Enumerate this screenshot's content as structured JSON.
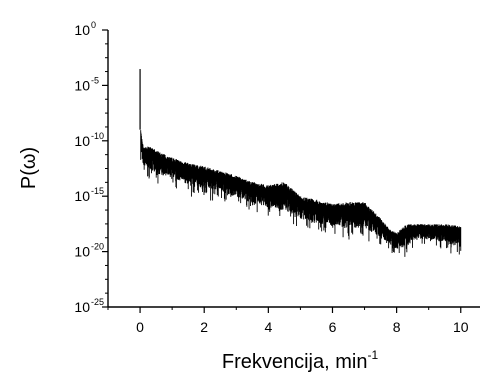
{
  "chart_data": {
    "type": "line",
    "xlabel": "Frekvencija, min",
    "xlabel_superscript": "-1",
    "ylabel": "P(ω)",
    "y_scale": "log",
    "xlim": [
      -1,
      10.6
    ],
    "ylim": [
      1e-25,
      1
    ],
    "x_ticks": [
      {
        "value": 0,
        "label": "0"
      },
      {
        "value": 2,
        "label": "2"
      },
      {
        "value": 4,
        "label": "4"
      },
      {
        "value": 6,
        "label": "6"
      },
      {
        "value": 8,
        "label": "8"
      },
      {
        "value": 10,
        "label": "10"
      }
    ],
    "y_ticks": [
      {
        "value": 1,
        "base": "10",
        "exponent": "0"
      },
      {
        "value": 1e-05,
        "base": "10",
        "exponent": "-5"
      },
      {
        "value": 1e-10,
        "base": "10",
        "exponent": "-10"
      },
      {
        "value": 1e-15,
        "base": "10",
        "exponent": "-15"
      },
      {
        "value": 1e-20,
        "base": "10",
        "exponent": "-20"
      },
      {
        "value": 1e-25,
        "base": "10",
        "exponent": "-25"
      }
    ],
    "grid": false,
    "legend": "none",
    "line_color": "#000000",
    "series": [
      {
        "peak": {
          "x": 0.0,
          "y": 0.0003
        },
        "envelope_upper": {
          "x": [
            0.02,
            0.1,
            0.3,
            0.6,
            1.0,
            1.5,
            2.0,
            2.5,
            3.0,
            3.5,
            4.0,
            4.5,
            5.0,
            5.5,
            6.0,
            6.5,
            7.0,
            7.5,
            7.8,
            8.0,
            8.3,
            8.6,
            9.0,
            9.5,
            10.0
          ],
          "y": [
            1e-09,
            3e-11,
            3e-11,
            1e-11,
            3e-12,
            1e-12,
            5e-13,
            2e-13,
            7e-14,
            2e-14,
            1e-14,
            2e-14,
            1e-15,
            5e-16,
            2e-16,
            3e-16,
            3e-16,
            1e-17,
            1e-18,
            5e-19,
            3e-18,
            3e-18,
            3e-18,
            3e-18,
            2e-18
          ]
        },
        "envelope_lower": {
          "x": [
            0.02,
            0.1,
            0.3,
            0.6,
            1.0,
            1.5,
            2.0,
            2.5,
            3.0,
            3.5,
            4.0,
            4.5,
            5.0,
            5.5,
            6.0,
            6.5,
            7.0,
            7.5,
            7.8,
            8.0,
            8.3,
            8.6,
            9.0,
            9.5,
            10.0
          ],
          "y": [
            1e-12,
            1e-13,
            3e-14,
            1e-14,
            5e-15,
            1e-15,
            5e-16,
            3e-16,
            1e-16,
            3e-17,
            1e-17,
            3e-18,
            1e-18,
            3e-19,
            3e-19,
            1e-19,
            1e-19,
            3e-20,
            1e-20,
            3e-21,
            3e-21,
            3e-20,
            3e-20,
            1e-20,
            3e-21
          ]
        }
      }
    ]
  }
}
